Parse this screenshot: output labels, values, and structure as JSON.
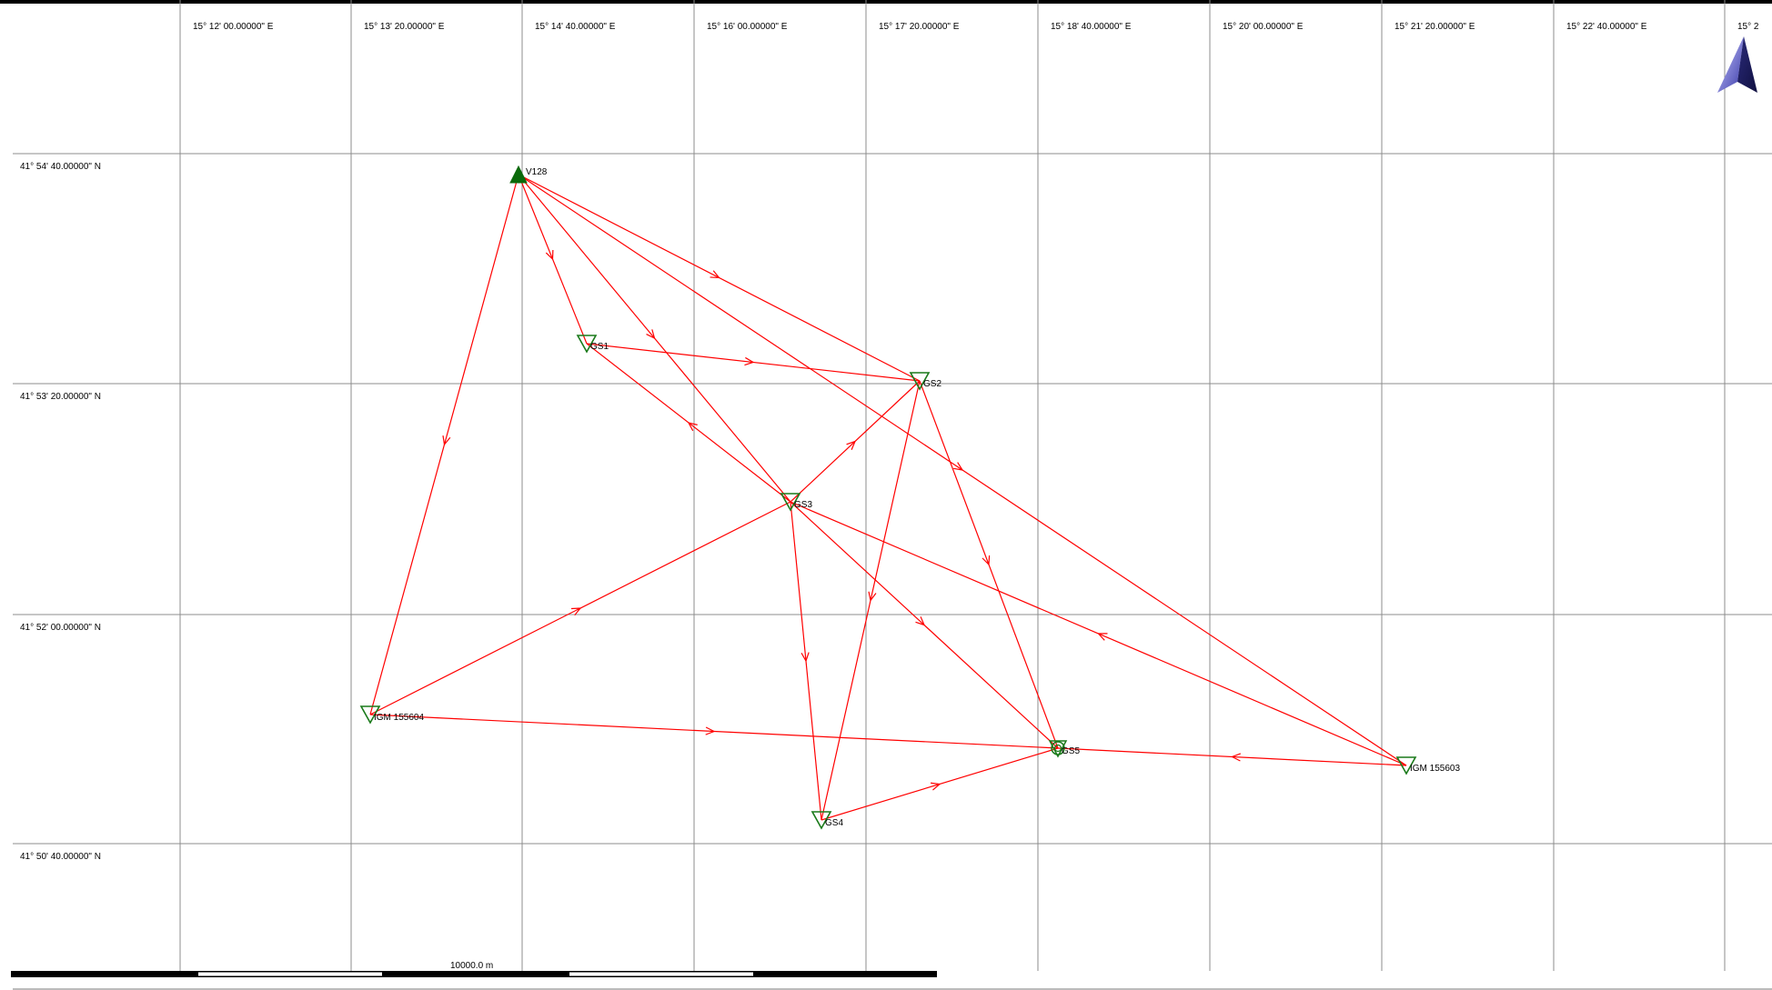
{
  "colors": {
    "grid": "#8c8c8c",
    "edge": "#ff0000",
    "station": "#1a7a1a",
    "anchor": "#0a6a0a",
    "frame": "#000000"
  },
  "longitude_labels": [
    "15° 12' 00.00000\" E",
    "15° 13' 20.00000\" E",
    "15° 14' 40.00000\" E",
    "15° 16' 00.00000\" E",
    "15° 17' 20.00000\" E",
    "15° 18' 40.00000\" E",
    "15° 20' 00.00000\" E",
    "15° 21' 20.00000\" E",
    "15° 22' 40.00000\" E",
    "15° 2"
  ],
  "latitude_labels": [
    "41° 54' 40.00000\" N",
    "41° 53' 20.00000\" N",
    "41° 52' 00.00000\" N",
    "41° 50' 40.00000\" N"
  ],
  "stations": [
    {
      "id": "v128",
      "label": "V128",
      "symbol": "triangle-up-filled"
    },
    {
      "id": "gs1",
      "label": "GS1",
      "symbol": "triangle-down"
    },
    {
      "id": "gs2",
      "label": "GS2",
      "symbol": "triangle-down"
    },
    {
      "id": "gs3",
      "label": "GS3",
      "symbol": "triangle-down"
    },
    {
      "id": "gs4",
      "label": "GS4",
      "symbol": "triangle-down"
    },
    {
      "id": "gs5",
      "label": "GS5",
      "symbol": "circle-target"
    },
    {
      "id": "igm604",
      "label": "IGM 155604",
      "symbol": "triangle-down"
    },
    {
      "id": "igm603",
      "label": "IGM 155603",
      "symbol": "triangle-down"
    }
  ],
  "vectors": [
    {
      "from": "v128",
      "to": "gs1"
    },
    {
      "from": "v128",
      "to": "gs2"
    },
    {
      "from": "v128",
      "to": "gs3"
    },
    {
      "from": "v128",
      "to": "igm603"
    },
    {
      "from": "v128",
      "to": "igm604"
    },
    {
      "from": "gs1",
      "to": "gs2"
    },
    {
      "from": "gs3",
      "to": "gs1"
    },
    {
      "from": "gs3",
      "to": "gs2"
    },
    {
      "from": "gs3",
      "to": "gs4"
    },
    {
      "from": "gs3",
      "to": "gs5"
    },
    {
      "from": "igm604",
      "to": "gs3"
    },
    {
      "from": "igm604",
      "to": "gs5"
    },
    {
      "from": "gs2",
      "to": "gs4"
    },
    {
      "from": "gs2",
      "to": "gs5"
    },
    {
      "from": "gs4",
      "to": "gs5"
    },
    {
      "from": "igm603",
      "to": "gs3"
    },
    {
      "from": "igm603",
      "to": "gs5"
    }
  ],
  "scale_bar": {
    "label": "10000.0 m"
  },
  "north_arrow": {
    "icon": "north-arrow-icon"
  }
}
